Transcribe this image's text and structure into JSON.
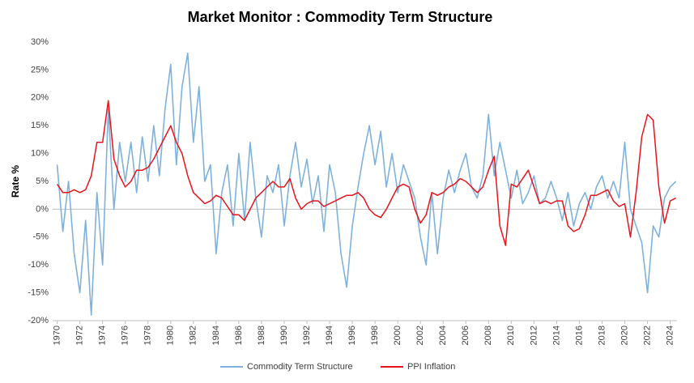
{
  "chart_data": {
    "type": "line",
    "title": "Market Monitor : Commodity Term Structure",
    "y_label": "Rate %",
    "x": [
      1970.0,
      1970.5,
      1971.0,
      1971.5,
      1972.0,
      1972.5,
      1973.0,
      1973.5,
      1974.0,
      1974.5,
      1975.0,
      1975.5,
      1976.0,
      1976.5,
      1977.0,
      1977.5,
      1978.0,
      1978.5,
      1979.0,
      1979.5,
      1980.0,
      1980.5,
      1981.0,
      1981.5,
      1982.0,
      1982.5,
      1983.0,
      1983.5,
      1984.0,
      1984.5,
      1985.0,
      1985.5,
      1986.0,
      1986.5,
      1987.0,
      1987.5,
      1988.0,
      1988.5,
      1989.0,
      1989.5,
      1990.0,
      1990.5,
      1991.0,
      1991.5,
      1992.0,
      1992.5,
      1993.0,
      1993.5,
      1994.0,
      1994.5,
      1995.0,
      1995.5,
      1996.0,
      1996.5,
      1997.0,
      1997.5,
      1998.0,
      1998.5,
      1999.0,
      1999.5,
      2000.0,
      2000.5,
      2001.0,
      2001.5,
      2002.0,
      2002.5,
      2003.0,
      2003.5,
      2004.0,
      2004.5,
      2005.0,
      2005.5,
      2006.0,
      2006.5,
      2007.0,
      2007.5,
      2008.0,
      2008.5,
      2009.0,
      2009.5,
      2010.0,
      2010.5,
      2011.0,
      2011.5,
      2012.0,
      2012.5,
      2013.0,
      2013.5,
      2014.0,
      2014.5,
      2015.0,
      2015.5,
      2016.0,
      2016.5,
      2017.0,
      2017.5,
      2018.0,
      2018.5,
      2019.0,
      2019.5,
      2020.0,
      2020.5,
      2021.0,
      2021.5,
      2022.0,
      2022.5,
      2023.0,
      2023.5,
      2024.0,
      2024.5
    ],
    "series": [
      {
        "name": "Commodity Term Structure",
        "color": "#7eb2dc",
        "values": [
          8,
          -4,
          5,
          -8,
          -15,
          -2,
          -19,
          3,
          -10,
          18,
          0,
          12,
          5,
          12,
          3,
          13,
          5,
          15,
          6,
          18,
          26,
          8,
          22,
          28,
          12,
          22,
          5,
          8,
          -8,
          3,
          8,
          -3,
          10,
          -2,
          12,
          2,
          -5,
          6,
          3,
          8,
          -3,
          6,
          12,
          4,
          9,
          1,
          6,
          -4,
          8,
          3,
          -8,
          -14,
          -3,
          4,
          10,
          15,
          8,
          14,
          4,
          10,
          3,
          8,
          5,
          2,
          -5,
          -10,
          3,
          -8,
          2,
          7,
          3,
          7,
          10,
          4,
          2,
          6,
          17,
          6,
          12,
          7,
          2,
          7,
          1,
          3,
          6,
          1,
          2,
          5,
          2,
          -2,
          3,
          -3,
          1,
          3,
          0,
          4,
          6,
          2,
          5,
          2,
          12,
          0,
          -3,
          -6,
          -15,
          -3,
          -5,
          2,
          4,
          5
        ]
      },
      {
        "name": "PPI Inflation",
        "color": "#e8141b",
        "values": [
          4.5,
          3,
          3,
          3.5,
          3,
          3.5,
          6,
          12,
          12,
          19.5,
          9,
          6,
          4,
          5,
          7,
          7,
          7.5,
          9,
          11,
          13,
          15,
          12,
          10,
          6,
          3,
          2,
          1,
          1.5,
          2.5,
          2,
          0.5,
          -1,
          -1,
          -2,
          0,
          2,
          3,
          4,
          5,
          4,
          4,
          5.5,
          2,
          0,
          1,
          1.5,
          1.5,
          0.5,
          1,
          1.5,
          2,
          2.5,
          2.5,
          3,
          2,
          0,
          -1,
          -1.5,
          0,
          2,
          4,
          4.5,
          4,
          0,
          -2.5,
          -1,
          3,
          2.5,
          3,
          4,
          4.5,
          5.5,
          5,
          4,
          3,
          4,
          7,
          9.5,
          -3,
          -6.5,
          4.5,
          4,
          5.5,
          7,
          4,
          1,
          1.5,
          1,
          1.5,
          1.5,
          -3,
          -4,
          -3.5,
          -1,
          2.5,
          2.5,
          3,
          3.5,
          1.5,
          0.5,
          1,
          -5,
          3,
          13,
          17,
          16,
          4,
          -2.5,
          1.5,
          2
        ]
      }
    ],
    "xlim": [
      1969.6,
      2024.6
    ],
    "xticks": [
      1970,
      1972,
      1974,
      1976,
      1978,
      1980,
      1982,
      1984,
      1986,
      1988,
      1990,
      1992,
      1994,
      1996,
      1998,
      2000,
      2002,
      2004,
      2006,
      2008,
      2010,
      2012,
      2014,
      2016,
      2018,
      2020,
      2022,
      2024
    ],
    "ylim": [
      -20,
      30
    ],
    "yticks": [
      {
        "value": -20,
        "label": "-20%"
      },
      {
        "value": -15,
        "label": "-15%"
      },
      {
        "value": -10,
        "label": "-10%"
      },
      {
        "value": -5,
        "label": "-5%"
      },
      {
        "value": 0,
        "label": "0%"
      },
      {
        "value": 5,
        "label": "5%"
      },
      {
        "value": 10,
        "label": "10%"
      },
      {
        "value": 15,
        "label": "15%"
      },
      {
        "value": 20,
        "label": "20%"
      },
      {
        "value": 25,
        "label": "25%"
      },
      {
        "value": 30,
        "label": "30%"
      }
    ],
    "legend": "bottom"
  }
}
